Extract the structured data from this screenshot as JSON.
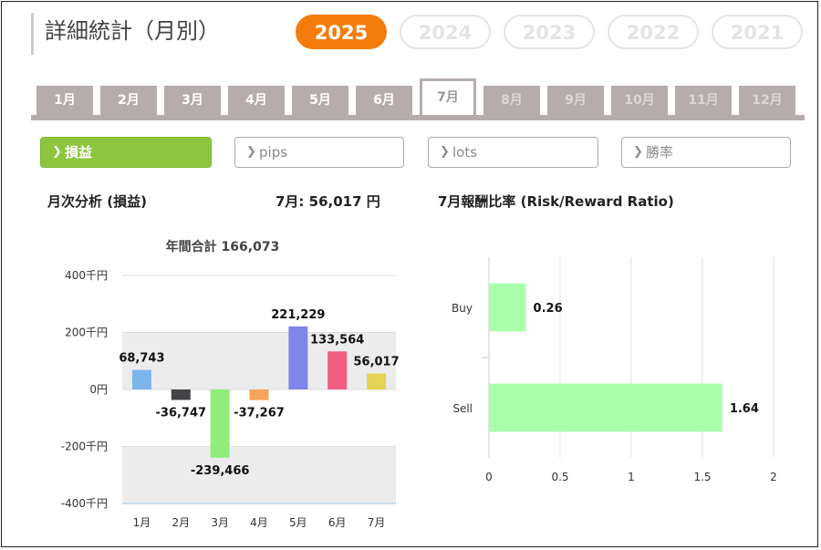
{
  "page": {
    "title": "詳細統計（月別）"
  },
  "years": [
    {
      "label": "2025",
      "active": true
    },
    {
      "label": "2024",
      "active": false
    },
    {
      "label": "2023",
      "active": false
    },
    {
      "label": "2022",
      "active": false
    },
    {
      "label": "2021",
      "active": false
    }
  ],
  "months": [
    {
      "label": "1月",
      "state": "enabled"
    },
    {
      "label": "2月",
      "state": "enabled"
    },
    {
      "label": "3月",
      "state": "enabled"
    },
    {
      "label": "4月",
      "state": "enabled"
    },
    {
      "label": "5月",
      "state": "enabled"
    },
    {
      "label": "6月",
      "state": "enabled"
    },
    {
      "label": "7月",
      "state": "active"
    },
    {
      "label": "8月",
      "state": "disabled"
    },
    {
      "label": "9月",
      "state": "disabled"
    },
    {
      "label": "10月",
      "state": "disabled"
    },
    {
      "label": "11月",
      "state": "disabled"
    },
    {
      "label": "12月",
      "state": "disabled"
    }
  ],
  "metric_tabs": [
    {
      "label": "損益",
      "active": true
    },
    {
      "label": "pips",
      "active": false
    },
    {
      "label": "lots",
      "active": false
    },
    {
      "label": "勝率",
      "active": false
    }
  ],
  "chevron_icon": "chevron-right-icon",
  "monthly_section": {
    "title": "月次分析 (損益)",
    "summary": "7月:  56,017 円"
  },
  "rr_section": {
    "title": "7月報酬比率 (Risk/Reward Ratio)"
  },
  "colors": {
    "accent": "#f47c0b",
    "active_tab": "#8cc63f",
    "month_tab": "#b6acac",
    "rr_bar": "#aaffaa"
  },
  "chart_data": [
    {
      "type": "bar",
      "title": "年間合計 166,073",
      "categories": [
        "1月",
        "2月",
        "3月",
        "4月",
        "5月",
        "6月",
        "7月"
      ],
      "values": [
        68743,
        -36747,
        -239466,
        -37267,
        221229,
        133564,
        56017
      ],
      "value_labels": [
        "68,743",
        "-36,747",
        "-239,466",
        "-37,267",
        "221,229",
        "133,564",
        "56,017"
      ],
      "colors": [
        "#7cb5ec",
        "#434348",
        "#90ed7d",
        "#f7a35c",
        "#8085e9",
        "#f15c80",
        "#e4d354"
      ],
      "yticks": [
        400000,
        200000,
        0,
        -200000,
        -400000
      ],
      "ytick_labels": [
        "400千円",
        "200千円",
        "0円",
        "-200千円",
        "-400千円"
      ],
      "ylim": [
        -400000,
        400000
      ],
      "xlabel": "",
      "ylabel": ""
    },
    {
      "type": "bar",
      "orientation": "horizontal",
      "categories": [
        "Buy",
        "Sell"
      ],
      "values": [
        0.26,
        1.64
      ],
      "value_labels": [
        "0.26",
        "1.64"
      ],
      "xticks": [
        0,
        0.5,
        1,
        1.5,
        2
      ],
      "xtick_labels": [
        "0",
        "0.5",
        "1",
        "1.5",
        "2"
      ],
      "xlim": [
        0,
        2
      ],
      "color": "#aaffaa",
      "xlabel": "",
      "ylabel": ""
    }
  ]
}
